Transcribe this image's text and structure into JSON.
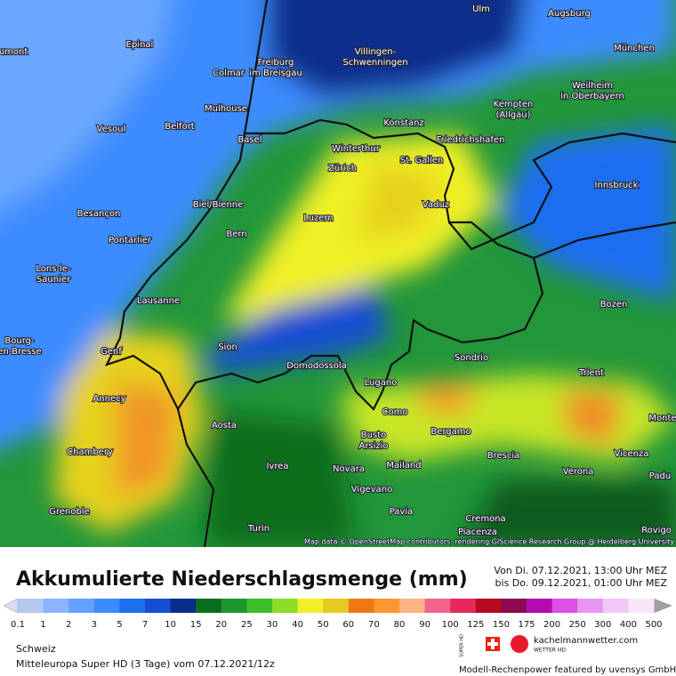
{
  "header": {
    "title": "Akkumulierte Niederschlagsmenge (mm)",
    "valid_from": "Von Di. 07.12.2021, 13:00 Uhr MEZ",
    "valid_to": "bis Do. 09.12.2021, 01:00 Uhr MEZ"
  },
  "map": {
    "attribution": "Map data © OpenStreetMap contributors, rendering GIScience Research Group @ Heidelberg University",
    "cities": [
      "Ulm",
      "Augsburg",
      "Epinal",
      "aumont",
      "Colmar",
      [
        "Freiburg",
        "im Breisgau"
      ],
      [
        "Villingen-",
        "Schwenningen"
      ],
      "München",
      [
        "Weilheim",
        "in Oberbayern"
      ],
      [
        "Kempten",
        "(Allgäu)"
      ],
      "Mulhouse",
      "Konstanz",
      "Vesoul",
      "Belfort",
      "Basel",
      "Winterthur",
      "Friedrichshafen",
      "St. Gallen",
      "Zürich",
      "Besançon",
      "Innsbruck",
      "Vaduz",
      "Biel/Bienne",
      "Luzern",
      "Bern",
      "Pontarlier",
      [
        "Lons-le-",
        "Saunier"
      ],
      "Lausanne",
      "Bozen",
      [
        "Bourg-",
        "en-Bresse"
      ],
      "Sion",
      "Genf",
      "Sondrio",
      "Domodossola",
      "Trient",
      "Lugano",
      "Annecy",
      "Como",
      "Monte",
      "Aosta",
      [
        "Busto",
        "Arsizio"
      ],
      "Bergamo",
      "Chambery",
      "Brescia",
      "Vicenza",
      "Novara",
      "Ivrea",
      "Mailand",
      "Verona",
      "Padu",
      "Vigevano",
      "Grenoble",
      "Pavia",
      "Cremona",
      "Turin",
      "Piacenza",
      "Rovigo"
    ]
  },
  "legend": {
    "labels": [
      "0.1",
      "1",
      "2",
      "3",
      "5",
      "7",
      "10",
      "15",
      "20",
      "25",
      "30",
      "40",
      "50",
      "60",
      "70",
      "80",
      "90",
      "100",
      "125",
      "150",
      "175",
      "200",
      "250",
      "300",
      "400",
      "500"
    ],
    "colors": [
      "#b4c8f0",
      "#8cb4ff",
      "#64a0ff",
      "#3c8cff",
      "#1e6ef0",
      "#1450d2",
      "#0a2d8c",
      "#0a6e1e",
      "#1e962d",
      "#3cbe28",
      "#8cdc28",
      "#f0f028",
      "#e6c81e",
      "#f07814",
      "#ff9632",
      "#ffb482",
      "#f0648c",
      "#e6285a",
      "#b40a1e",
      "#8c0a50",
      "#b40ab4",
      "#dc50e6",
      "#e696f0",
      "#f0c8f5",
      "#fae6fa",
      "#d2d2d2"
    ],
    "under_color": "#dcdcf0",
    "over_color": "#a0a0a0"
  },
  "footer": {
    "region": "Schweiz",
    "model": "Mitteleuropa Super HD (3 Tage) vom 07.12.2021/12z",
    "badge": "SUPER HD",
    "brand": "kachelmannwetter.com",
    "brand_sub": "WETTER HD",
    "credit": "Modell-Rechenpower featured by uvensys GmbH"
  }
}
